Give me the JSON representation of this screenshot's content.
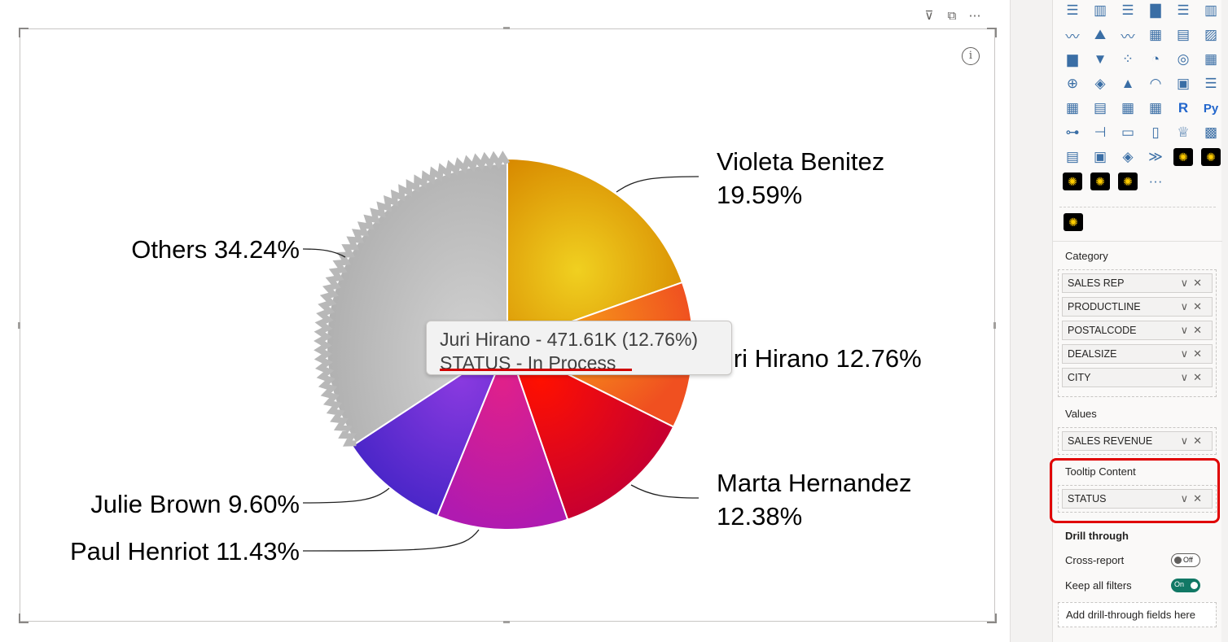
{
  "visual": {
    "header_icons": [
      "filter-icon",
      "focus-mode-icon",
      "more-options-icon"
    ],
    "info_icon": "i"
  },
  "chart_data": {
    "type": "pie",
    "slices": [
      {
        "name": "Violeta Benitez",
        "percent": 19.59,
        "label": "Violeta Benitez",
        "label2": "19.59%",
        "color": "#e0a800"
      },
      {
        "name": "Juri Hirano",
        "percent": 12.76,
        "label": "Juri Hirano 12.76%",
        "color": "#f5741c"
      },
      {
        "name": "Marta Hernandez",
        "percent": 12.38,
        "label": "Marta Hernandez",
        "label2": "12.38%",
        "color": "#e0001a"
      },
      {
        "name": "Paul Henriot",
        "percent": 11.43,
        "label": "Paul Henriot 11.43%",
        "color": "#c81aa0"
      },
      {
        "name": "Julie Brown",
        "percent": 9.6,
        "label": "Julie Brown 9.60%",
        "color": "#6a2fd8"
      },
      {
        "name": "Others",
        "percent": 34.24,
        "label": "Others 34.24%",
        "color": "#c0c0c0"
      }
    ]
  },
  "tooltip": {
    "line1": "Juri Hirano - 471.61K (12.76%)",
    "line2": "STATUS - In Process"
  },
  "pane": {
    "category_label": "Category",
    "category_fields": [
      "SALES REP",
      "PRODUCTLINE",
      "POSTALCODE",
      "DEALSIZE",
      "CITY"
    ],
    "values_label": "Values",
    "values_fields": [
      "SALES REVENUE"
    ],
    "tooltip_label": "Tooltip Content",
    "tooltip_fields": [
      "STATUS"
    ],
    "field_actions": "∨✕",
    "drill_label": "Drill through",
    "cross_report_label": "Cross-report",
    "cross_report_state": "Off",
    "keep_filters_label": "Keep all filters",
    "keep_filters_state": "On",
    "add_drill_label": "Add drill-through fields here",
    "more_visuals": "···"
  }
}
